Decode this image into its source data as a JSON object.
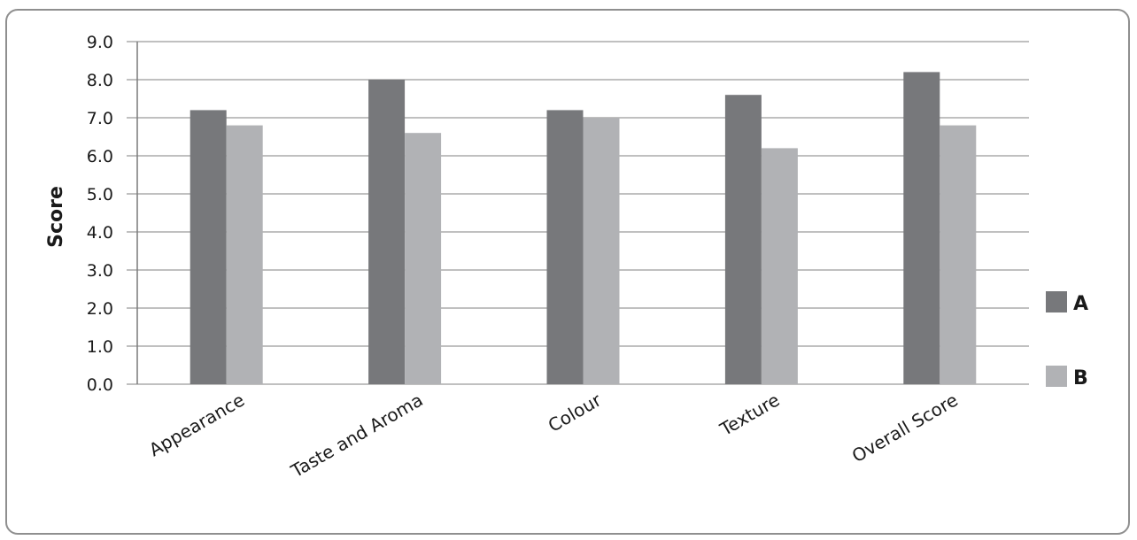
{
  "chart_data": {
    "type": "bar",
    "title": "",
    "xlabel": "",
    "ylabel": "Score",
    "ylim": [
      0,
      9
    ],
    "yticks": [
      "0.0",
      "1.0",
      "2.0",
      "3.0",
      "4.0",
      "5.0",
      "6.0",
      "7.0",
      "8.0",
      "9.0"
    ],
    "categories": [
      "Appearance",
      "Taste and Aroma",
      "Colour",
      "Texture",
      "Overall Score"
    ],
    "series": [
      {
        "name": "A",
        "color": "#77787b",
        "values": [
          7.2,
          8.0,
          7.2,
          7.6,
          8.2
        ]
      },
      {
        "name": "B",
        "color": "#b1b2b5",
        "values": [
          6.8,
          6.6,
          7.0,
          6.2,
          6.8
        ]
      }
    ],
    "grid": true,
    "legend_position": "right"
  }
}
